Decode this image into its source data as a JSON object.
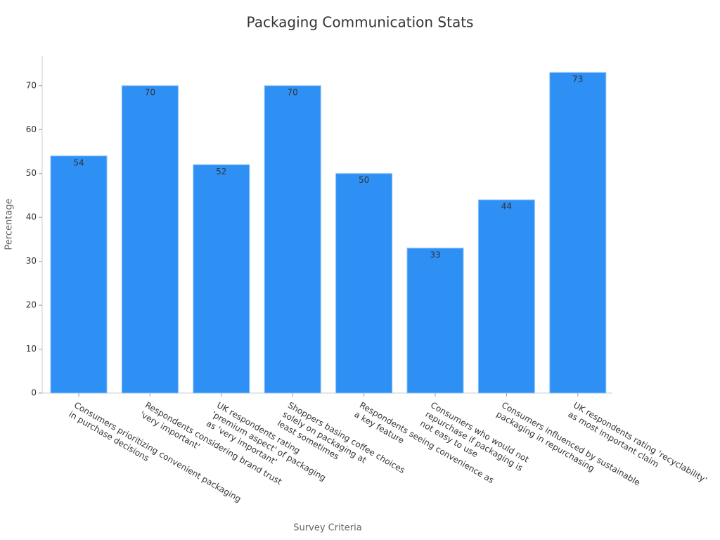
{
  "chart_data": {
    "type": "bar",
    "title": "Packaging Communication Stats",
    "x_label": "Survey Criteria",
    "y_label": "Percentage",
    "categories": [
      "Consumers prioritizing convenient packaging\nin purchase decisions",
      "Respondents considering brand trust\n'very important'",
      "UK respondents rating\n'premium aspect' of packaging\nas 'very important'",
      "Shoppers basing coffee choices\nsolely on packaging at\nleast sometimes",
      "Respondents seeing convenience as\na key feature",
      "Consumers who would not\nrepurchase if packaging is\nnot easy to use",
      "Consumers influenced by sustainable\npackaging in repurchasing",
      "UK respondents rating 'recyclability'\nas most important claim"
    ],
    "values": [
      54,
      70,
      52,
      70,
      50,
      33,
      44,
      73
    ],
    "color": "#2e90f5",
    "ylim": [
      0,
      76.7
    ],
    "yticks": [
      0,
      10,
      20,
      30,
      40,
      50,
      60,
      70
    ],
    "grid": false
  }
}
